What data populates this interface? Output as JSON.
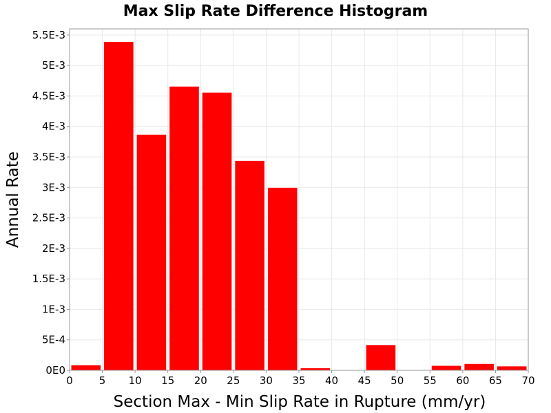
{
  "chart_data": {
    "type": "bar",
    "title": "Max Slip Rate Difference Histogram",
    "xlabel": "Section Max - Min Slip Rate in Rupture (mm/yr)",
    "ylabel": "Annual Rate",
    "xlim": [
      0,
      70
    ],
    "ylim": [
      0,
      0.0056
    ],
    "bin_width": 5,
    "x_ticks": [
      0,
      5,
      10,
      15,
      20,
      25,
      30,
      35,
      40,
      45,
      50,
      55,
      60,
      65,
      70
    ],
    "x_tick_labels": [
      "0",
      "5",
      "10",
      "15",
      "20",
      "25",
      "30",
      "35",
      "40",
      "45",
      "50",
      "55",
      "60",
      "65",
      "70"
    ],
    "y_ticks": [
      0,
      0.0005,
      0.001,
      0.0015,
      0.002,
      0.0025,
      0.003,
      0.0035,
      0.004,
      0.0045,
      0.005,
      0.0055
    ],
    "y_tick_labels": [
      "0E0",
      "5E-4",
      "1E-3",
      "1.5E-3",
      "2E-3",
      "2.5E-3",
      "3E-3",
      "3.5E-3",
      "4E-3",
      "4.5E-3",
      "5E-3",
      "5.5E-3"
    ],
    "bin_starts": [
      0,
      5,
      10,
      15,
      20,
      25,
      30,
      35,
      40,
      45,
      50,
      55,
      60,
      65
    ],
    "values": [
      9e-05,
      0.00539,
      0.00387,
      0.00466,
      0.00456,
      0.00344,
      0.003,
      4e-05,
      0,
      0.00042,
      0,
      8e-05,
      0.00011,
      7e-05
    ],
    "grid": true,
    "bar_color": "#ff0000",
    "grid_color": "#e8e8e8"
  }
}
